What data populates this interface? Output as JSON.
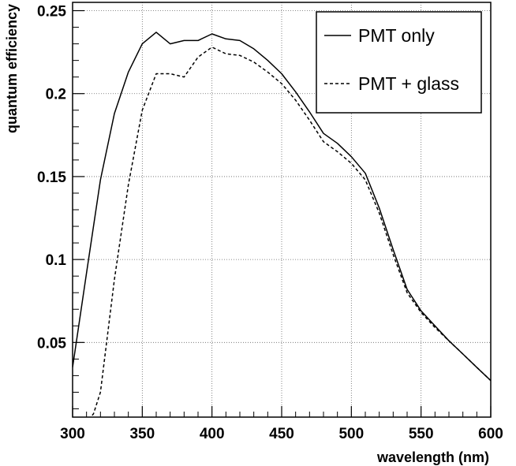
{
  "chart_data": {
    "type": "line",
    "title": "",
    "xlabel": "wavelength (nm)",
    "ylabel": "quantum efficiency",
    "xlim": [
      300,
      600
    ],
    "ylim": [
      0.005,
      0.255
    ],
    "x_ticks": [
      300,
      350,
      400,
      450,
      500,
      550,
      600
    ],
    "x_tick_labels": [
      "300",
      "350",
      "400",
      "450",
      "500",
      "550",
      "600"
    ],
    "y_ticks": [
      0.05,
      0.1,
      0.15,
      0.2,
      0.25
    ],
    "y_tick_labels": [
      "0.05",
      "0.1",
      "0.15",
      "0.2",
      "0.25"
    ],
    "grid": true,
    "legend_position": "top-right",
    "series": [
      {
        "name": "PMT only",
        "style": "solid",
        "color": "#000000",
        "x": [
          300,
          310,
          320,
          330,
          340,
          350,
          360,
          370,
          380,
          390,
          400,
          410,
          420,
          430,
          440,
          450,
          460,
          470,
          480,
          490,
          500,
          510,
          520,
          530,
          540,
          550,
          560,
          570,
          580,
          590,
          600
        ],
        "y": [
          0.035,
          0.092,
          0.148,
          0.188,
          0.213,
          0.23,
          0.237,
          0.23,
          0.232,
          0.232,
          0.236,
          0.233,
          0.232,
          0.227,
          0.22,
          0.212,
          0.201,
          0.189,
          0.176,
          0.17,
          0.162,
          0.152,
          0.131,
          0.106,
          0.082,
          0.069,
          0.06,
          0.051,
          0.043,
          0.035,
          0.027
        ]
      },
      {
        "name": "PMT + glass",
        "style": "dashed",
        "color": "#000000",
        "x": [
          303,
          310,
          315,
          320,
          330,
          340,
          350,
          360,
          370,
          380,
          390,
          400,
          410,
          420,
          430,
          440,
          450,
          460,
          470,
          480,
          490,
          500,
          510,
          520,
          530,
          540,
          550,
          560,
          570,
          580,
          590,
          600
        ],
        "y": [
          -0.015,
          0.002,
          0.007,
          0.02,
          0.088,
          0.145,
          0.19,
          0.212,
          0.212,
          0.21,
          0.222,
          0.228,
          0.224,
          0.223,
          0.219,
          0.213,
          0.206,
          0.196,
          0.184,
          0.171,
          0.165,
          0.158,
          0.148,
          0.128,
          0.103,
          0.08,
          0.068,
          0.059,
          0.051,
          0.043,
          0.035,
          0.027
        ]
      }
    ]
  }
}
